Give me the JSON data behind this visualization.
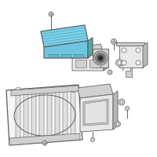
{
  "bg_color": "#ffffff",
  "highlight_color": "#6ec6de",
  "highlight_dark": "#4aabb0",
  "highlight_top": "#7dd0e8",
  "part_color": "#e8e8e8",
  "part_mid": "#d0d0d0",
  "part_dark": "#b8b8b8",
  "outline_color": "#606060",
  "grille_fill": "#f5f5f5",
  "grille_bar": "#e0e0e0"
}
